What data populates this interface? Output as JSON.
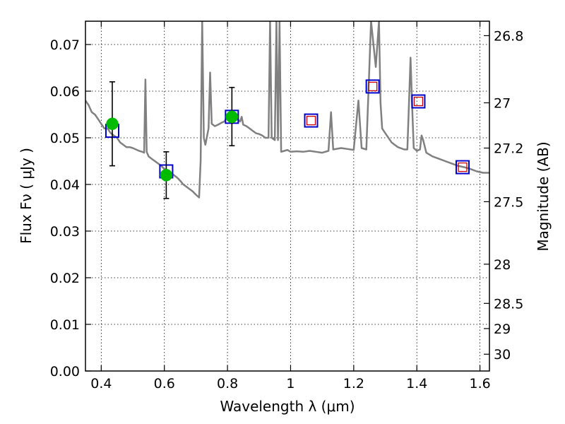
{
  "chart_data": {
    "type": "scatter",
    "xlabel": "Wavelength  λ (μm)",
    "ylabel": "Flux  Fν  ( μJy )",
    "ylabel_right": "Magnitude (AB)",
    "xlim": [
      0.35,
      1.63
    ],
    "ylim": [
      0.0,
      0.075
    ],
    "x_ticks": [
      0.4,
      0.6,
      0.8,
      1.0,
      1.2,
      1.4,
      1.6
    ],
    "x_tick_labels": [
      "0.4",
      "0.6",
      "0.8",
      "1",
      "1.2",
      "1.4",
      "1.6"
    ],
    "y_ticks": [
      0.0,
      0.01,
      0.02,
      0.03,
      0.04,
      0.05,
      0.06,
      0.07
    ],
    "y_tick_labels": [
      "0.00",
      "0.01",
      "0.02",
      "0.03",
      "0.04",
      "0.05",
      "0.06",
      "0.07"
    ],
    "right_axis_ticks": [
      {
        "label": "26.8",
        "flux": 0.0719
      },
      {
        "label": "27",
        "flux": 0.0575
      },
      {
        "label": "27.2",
        "flux": 0.0478
      },
      {
        "label": "27.5",
        "flux": 0.0363
      },
      {
        "label": "28",
        "flux": 0.0229
      },
      {
        "label": "28.5",
        "flux": 0.0145
      },
      {
        "label": "29",
        "flux": 0.0091
      },
      {
        "label": "30",
        "flux": 0.0036
      }
    ],
    "grid": true,
    "series": [
      {
        "kind": "template-spectrum",
        "color": "#808080",
        "points": [
          [
            0.35,
            0.058
          ],
          [
            0.36,
            0.057
          ],
          [
            0.37,
            0.0555
          ],
          [
            0.38,
            0.055
          ],
          [
            0.39,
            0.054
          ],
          [
            0.4,
            0.053
          ],
          [
            0.41,
            0.052
          ],
          [
            0.42,
            0.052
          ],
          [
            0.43,
            0.051
          ],
          [
            0.44,
            0.0505
          ],
          [
            0.45,
            0.05
          ],
          [
            0.455,
            0.0495
          ],
          [
            0.46,
            0.049
          ],
          [
            0.47,
            0.0485
          ],
          [
            0.48,
            0.048
          ],
          [
            0.49,
            0.048
          ],
          [
            0.5,
            0.0478
          ],
          [
            0.51,
            0.0475
          ],
          [
            0.52,
            0.0472
          ],
          [
            0.53,
            0.047
          ],
          [
            0.536,
            0.0468
          ],
          [
            0.54,
            0.0625
          ],
          [
            0.544,
            0.047
          ],
          [
            0.55,
            0.046
          ],
          [
            0.56,
            0.0455
          ],
          [
            0.57,
            0.045
          ],
          [
            0.58,
            0.0445
          ],
          [
            0.59,
            0.044
          ],
          [
            0.6,
            0.0433
          ],
          [
            0.61,
            0.043
          ],
          [
            0.62,
            0.0425
          ],
          [
            0.63,
            0.042
          ],
          [
            0.64,
            0.0415
          ],
          [
            0.65,
            0.0408
          ],
          [
            0.66,
            0.04
          ],
          [
            0.67,
            0.0395
          ],
          [
            0.68,
            0.039
          ],
          [
            0.69,
            0.0385
          ],
          [
            0.7,
            0.0378
          ],
          [
            0.71,
            0.0372
          ],
          [
            0.715,
            0.045
          ],
          [
            0.72,
            0.075
          ],
          [
            0.725,
            0.05
          ],
          [
            0.73,
            0.0485
          ],
          [
            0.74,
            0.052
          ],
          [
            0.745,
            0.064
          ],
          [
            0.75,
            0.053
          ],
          [
            0.76,
            0.0525
          ],
          [
            0.77,
            0.0528
          ],
          [
            0.78,
            0.0532
          ],
          [
            0.79,
            0.0535
          ],
          [
            0.8,
            0.0545
          ],
          [
            0.81,
            0.0548
          ],
          [
            0.82,
            0.0545
          ],
          [
            0.83,
            0.054
          ],
          [
            0.84,
            0.0535
          ],
          [
            0.845,
            0.0545
          ],
          [
            0.85,
            0.0528
          ],
          [
            0.86,
            0.0525
          ],
          [
            0.87,
            0.052
          ],
          [
            0.88,
            0.0515
          ],
          [
            0.89,
            0.051
          ],
          [
            0.9,
            0.0508
          ],
          [
            0.91,
            0.0505
          ],
          [
            0.92,
            0.05
          ],
          [
            0.93,
            0.05
          ],
          [
            0.935,
            0.075
          ],
          [
            0.94,
            0.05
          ],
          [
            0.95,
            0.0495
          ],
          [
            0.955,
            0.075
          ],
          [
            0.96,
            0.0495
          ],
          [
            0.965,
            0.075
          ],
          [
            0.97,
            0.047
          ],
          [
            0.98,
            0.0472
          ],
          [
            0.99,
            0.0474
          ],
          [
            1.0,
            0.047
          ],
          [
            1.02,
            0.0471
          ],
          [
            1.04,
            0.047
          ],
          [
            1.06,
            0.0472
          ],
          [
            1.08,
            0.047
          ],
          [
            1.1,
            0.0468
          ],
          [
            1.12,
            0.0472
          ],
          [
            1.128,
            0.0555
          ],
          [
            1.135,
            0.0475
          ],
          [
            1.16,
            0.0478
          ],
          [
            1.18,
            0.0476
          ],
          [
            1.2,
            0.0474
          ],
          [
            1.215,
            0.058
          ],
          [
            1.225,
            0.0478
          ],
          [
            1.24,
            0.0475
          ],
          [
            1.255,
            0.075
          ],
          [
            1.27,
            0.0652
          ],
          [
            1.28,
            0.075
          ],
          [
            1.285,
            0.0575
          ],
          [
            1.29,
            0.052
          ],
          [
            1.3,
            0.051
          ],
          [
            1.32,
            0.049
          ],
          [
            1.34,
            0.048
          ],
          [
            1.36,
            0.0475
          ],
          [
            1.37,
            0.0475
          ],
          [
            1.375,
            0.057
          ],
          [
            1.38,
            0.0672
          ],
          [
            1.385,
            0.057
          ],
          [
            1.39,
            0.0478
          ],
          [
            1.4,
            0.0472
          ],
          [
            1.41,
            0.0475
          ],
          [
            1.415,
            0.0505
          ],
          [
            1.42,
            0.0495
          ],
          [
            1.43,
            0.0468
          ],
          [
            1.45,
            0.046
          ],
          [
            1.47,
            0.0455
          ],
          [
            1.49,
            0.045
          ],
          [
            1.51,
            0.0445
          ],
          [
            1.53,
            0.044
          ],
          [
            1.55,
            0.0437
          ],
          [
            1.57,
            0.0433
          ],
          [
            1.59,
            0.0428
          ],
          [
            1.61,
            0.0425
          ],
          [
            1.63,
            0.0425
          ]
        ]
      },
      {
        "kind": "observed",
        "color": "#00bb00",
        "points": [
          {
            "x": 0.435,
            "y": 0.053,
            "yerr_low": 0.044,
            "yerr_high": 0.062
          },
          {
            "x": 0.606,
            "y": 0.042,
            "yerr_low": 0.037,
            "yerr_high": 0.047
          },
          {
            "x": 0.814,
            "y": 0.0545,
            "yerr_low": 0.0483,
            "yerr_high": 0.0608
          }
        ]
      },
      {
        "kind": "model-blue-square",
        "color": "#0000cc",
        "points": [
          [
            0.435,
            0.0515
          ],
          [
            0.606,
            0.0428
          ],
          [
            0.814,
            0.0545
          ],
          [
            1.065,
            0.0537
          ],
          [
            1.26,
            0.061
          ],
          [
            1.405,
            0.0578
          ],
          [
            1.545,
            0.0437
          ]
        ]
      },
      {
        "kind": "model-red-square",
        "color": "#cc0000",
        "points": [
          [
            1.065,
            0.0537
          ],
          [
            1.26,
            0.061
          ],
          [
            1.405,
            0.0578
          ],
          [
            1.545,
            0.0437
          ]
        ]
      }
    ]
  }
}
